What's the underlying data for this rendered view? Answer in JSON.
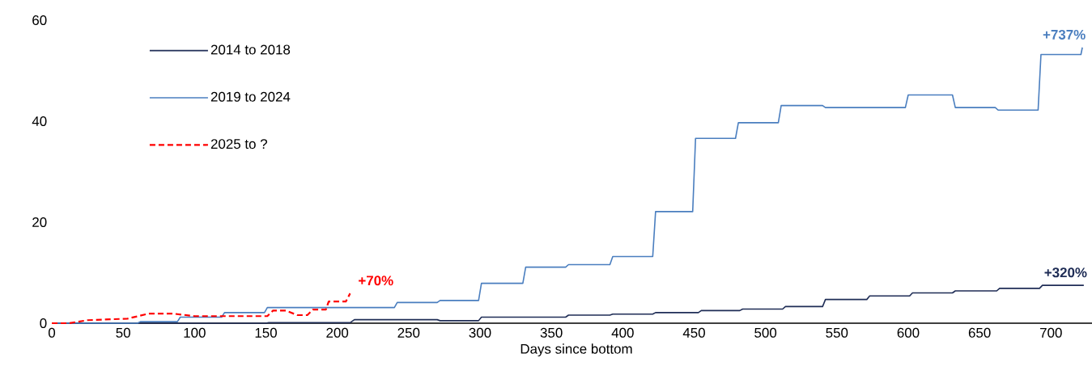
{
  "chart_data": {
    "type": "line",
    "xlabel": "Days since bottom",
    "xlim": [
      0,
      735
    ],
    "xticks": [
      0,
      50,
      100,
      150,
      200,
      250,
      300,
      350,
      400,
      450,
      500,
      550,
      600,
      650,
      700
    ],
    "ylim": [
      0,
      60
    ],
    "yticks": [
      0,
      20,
      40,
      60
    ],
    "grid": false,
    "legend": "top left",
    "marker": "none",
    "series": [
      {
        "name": "2014 to 2018",
        "color": "#1f2d56",
        "line_style": "solid",
        "x": [
          0,
          150,
          152,
          209,
          212,
          270,
          272,
          299,
          301,
          360,
          362,
          391,
          393,
          421,
          423,
          453,
          455,
          482,
          484,
          512,
          514,
          540,
          542,
          571,
          573,
          601,
          603,
          631,
          633,
          662,
          664,
          692,
          694,
          723
        ],
        "values": [
          0,
          0,
          0.1,
          0.1,
          0.7,
          0.7,
          0.5,
          0.5,
          1.2,
          1.2,
          1.6,
          1.6,
          1.8,
          1.8,
          2.1,
          2.1,
          2.5,
          2.5,
          2.8,
          2.8,
          3.3,
          3.3,
          4.7,
          4.7,
          5.4,
          5.4,
          6.0,
          6.0,
          6.4,
          6.4,
          6.9,
          6.9,
          7.5,
          7.5
        ]
      },
      {
        "name": "2019 to 2024",
        "color": "#4a7ebf",
        "line_style": "solid",
        "x": [
          0,
          60,
          62,
          88,
          90,
          119,
          121,
          149,
          151,
          240,
          242,
          270,
          272,
          299,
          301,
          330,
          332,
          360,
          362,
          391,
          393,
          421,
          423,
          449,
          451,
          479,
          481,
          509,
          511,
          540,
          542,
          598,
          600,
          631,
          633,
          661,
          663,
          691,
          693,
          721,
          722
        ],
        "values": [
          0,
          0,
          0.3,
          0.3,
          1.2,
          1.2,
          2.1,
          2.1,
          3.1,
          3.1,
          4.1,
          4.1,
          4.5,
          4.5,
          7.9,
          7.9,
          11.1,
          11.1,
          11.6,
          11.6,
          13.2,
          13.2,
          22.1,
          22.1,
          36.6,
          36.6,
          39.7,
          39.7,
          43.1,
          43.1,
          42.7,
          42.7,
          45.2,
          45.2,
          42.7,
          42.7,
          42.2,
          42.2,
          53.2,
          53.2,
          54.6
        ]
      },
      {
        "name": "2025 to ?",
        "color": "#ff0000",
        "line_style": "dashed",
        "x": [
          0,
          12,
          25,
          53,
          68,
          85,
          100,
          119,
          151,
          155,
          164,
          172,
          179,
          183,
          192,
          194,
          206,
          209
        ],
        "values": [
          0,
          0,
          0.6,
          0.9,
          1.9,
          1.9,
          1.4,
          1.4,
          1.4,
          2.5,
          2.5,
          1.6,
          1.6,
          2.7,
          2.7,
          4.3,
          4.3,
          5.9
        ]
      }
    ],
    "annotations": [
      {
        "text": "+737%",
        "x": 722,
        "y": 54.6
      },
      {
        "text": "+320%",
        "x": 723,
        "y": 7.5
      },
      {
        "text": "+70%",
        "x": 209,
        "y": 5.9
      }
    ]
  }
}
